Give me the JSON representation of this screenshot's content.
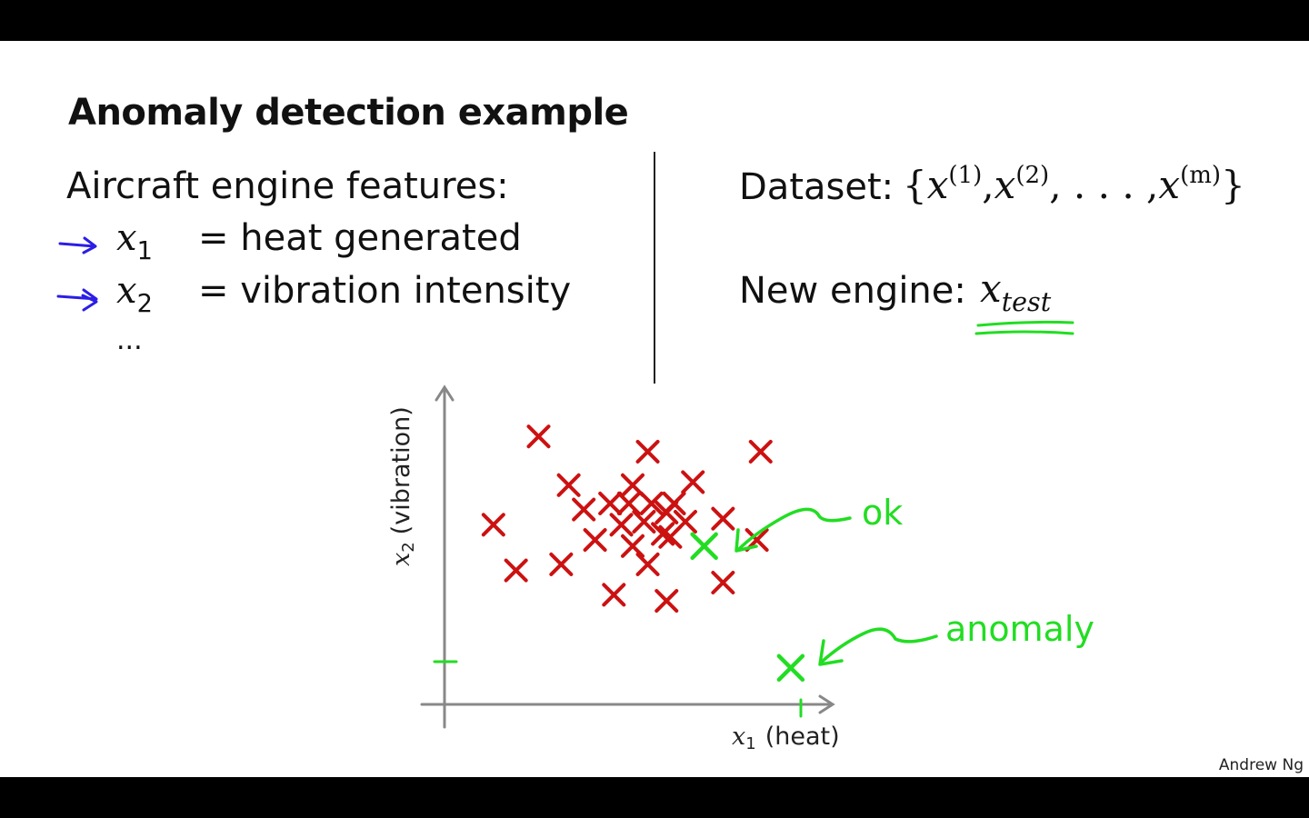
{
  "slide": {
    "title": "Anomaly detection example",
    "features_heading": "Aircraft engine features:",
    "features": [
      {
        "var": "x",
        "sub": "1",
        "desc": "= heat generated"
      },
      {
        "var": "x",
        "sub": "2",
        "desc": "= vibration intensity"
      }
    ],
    "ellipsis": "...",
    "dataset_label": "Dataset:",
    "dataset_set": {
      "open": "{",
      "var": "x",
      "sups": [
        "(1)",
        "(2)",
        "(m)"
      ],
      "dots": ", . . . ,",
      "close": "}"
    },
    "new_engine_label": "New engine:",
    "xtest": {
      "var": "x",
      "sub": "test"
    },
    "watermark": "Andrew Ng"
  },
  "annotations": {
    "ok_label": "ok",
    "anomaly_label": "anomaly",
    "ink_color": "#22dd22",
    "arrow_color": "#2b1ee6"
  },
  "chart_data": {
    "type": "scatter",
    "xlabel_var": "x",
    "xlabel_sub": "1",
    "xlabel": "(heat)",
    "ylabel_var": "x",
    "ylabel_sub": "2",
    "ylabel": "(vibration)",
    "xlim": [
      0,
      10
    ],
    "ylim": [
      0,
      10
    ],
    "grid": false,
    "series": [
      {
        "color": "#cc1111",
        "points": [
          [
            2.5,
            8.8
          ],
          [
            5.4,
            8.3
          ],
          [
            8.4,
            8.3
          ],
          [
            3.3,
            7.2
          ],
          [
            5.0,
            7.2
          ],
          [
            6.6,
            7.3
          ],
          [
            6.1,
            6.6
          ],
          [
            4.4,
            6.6
          ],
          [
            4.9,
            6.6
          ],
          [
            5.5,
            6.6
          ],
          [
            3.7,
            6.4
          ],
          [
            5.9,
            6.3
          ],
          [
            7.4,
            6.1
          ],
          [
            4.7,
            5.9
          ],
          [
            5.3,
            6.0
          ],
          [
            6.4,
            6.0
          ],
          [
            1.3,
            5.9
          ],
          [
            5.8,
            5.6
          ],
          [
            6.0,
            5.5
          ],
          [
            4.0,
            5.4
          ],
          [
            8.3,
            5.4
          ],
          [
            5.0,
            5.2
          ],
          [
            3.1,
            4.6
          ],
          [
            5.4,
            4.6
          ],
          [
            1.9,
            4.4
          ],
          [
            7.4,
            4.0
          ],
          [
            4.5,
            3.6
          ],
          [
            5.9,
            3.4
          ]
        ]
      },
      {
        "name": "x_test",
        "color": "#22dd22",
        "points": [
          [
            6.9,
            5.2
          ],
          [
            9.2,
            1.2
          ]
        ]
      }
    ]
  }
}
